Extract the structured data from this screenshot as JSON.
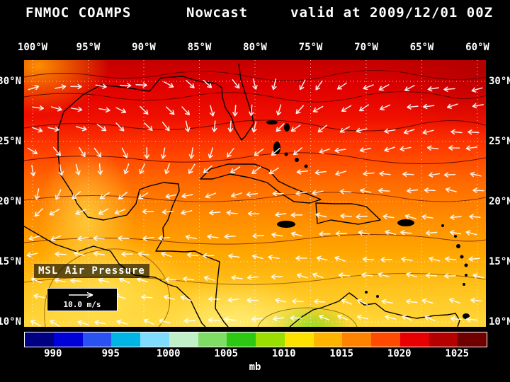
{
  "header": {
    "model": "FNMOC COAMPS",
    "product": "Nowcast",
    "valid": "valid at 2009/12/01 00Z"
  },
  "map": {
    "field_label": "MSL Air Pressure",
    "wind_ref": {
      "label": "10.0 m/s"
    },
    "lon_labels": [
      "100°W",
      "95°W",
      "90°W",
      "85°W",
      "80°W",
      "75°W",
      "70°W",
      "65°W",
      "60°W"
    ],
    "lat_labels": [
      "30°N",
      "25°N",
      "20°N",
      "15°N",
      "10°N"
    ]
  },
  "colorbar": {
    "unit": "mb",
    "tick_labels": [
      "990",
      "995",
      "1000",
      "1005",
      "1010",
      "1015",
      "1020",
      "1025"
    ],
    "colors": [
      "#000082",
      "#0000d8",
      "#2a52f0",
      "#00b4e6",
      "#7fdcff",
      "#c0f0c8",
      "#7fdc64",
      "#2dc814",
      "#9adf00",
      "#ffe100",
      "#ffb400",
      "#ff8200",
      "#ff4b00",
      "#e80000",
      "#b40000",
      "#700000"
    ]
  },
  "chart_data": {
    "type": "heatmap",
    "title": "FNMOC COAMPS Nowcast",
    "valid_time": "2009/12/01 00Z",
    "field": "MSL Air Pressure",
    "unit": "mb",
    "region": "Gulf of Mexico / Caribbean",
    "lon_deg_w": [
      100,
      95,
      90,
      85,
      80,
      75,
      70,
      65,
      60
    ],
    "lat_deg_n": [
      30,
      25,
      20,
      15,
      10
    ],
    "colorbar_tick_values_mb": [
      990,
      995,
      1000,
      1005,
      1010,
      1015,
      1020,
      1025
    ],
    "colorbar_segment_edges_mb": [
      987.5,
      990,
      992.5,
      995,
      997.5,
      1000,
      1002.5,
      1005,
      1007.5,
      1010,
      1012.5,
      1015,
      1017.5,
      1020,
      1022.5,
      1025,
      1027.5
    ],
    "pressure_grid_mb": [
      [
        1014,
        1017,
        1018,
        1019,
        1019,
        1019,
        1020,
        1020,
        1021
      ],
      [
        1012,
        1014,
        1016,
        1016,
        1017,
        1017,
        1017,
        1018,
        1018
      ],
      [
        1011,
        1012,
        1013,
        1014,
        1015,
        1015,
        1015,
        1015,
        1016
      ],
      [
        1010,
        1011,
        1012,
        1013,
        1013,
        1013,
        1013,
        1014,
        1014
      ],
      [
        1009,
        1010,
        1010,
        1011,
        1009,
        1010,
        1011,
        1012,
        1012
      ]
    ],
    "wind_overlay": "vectors",
    "wind_reference_ms": 10.0,
    "wind_dir_screen_deg": [
      [
        -15,
        -5,
        10,
        35,
        70,
        130,
        150,
        160,
        170
      ],
      [
        25,
        30,
        60,
        95,
        125,
        150,
        165,
        175,
        180
      ],
      [
        120,
        150,
        165,
        172,
        177,
        182,
        185,
        185,
        186
      ],
      [
        185,
        190,
        193,
        190,
        186,
        190,
        190,
        186,
        185
      ],
      [
        205,
        200,
        195,
        188,
        172,
        192,
        200,
        198,
        193
      ]
    ],
    "legend_position": "bottom",
    "grid": true
  }
}
